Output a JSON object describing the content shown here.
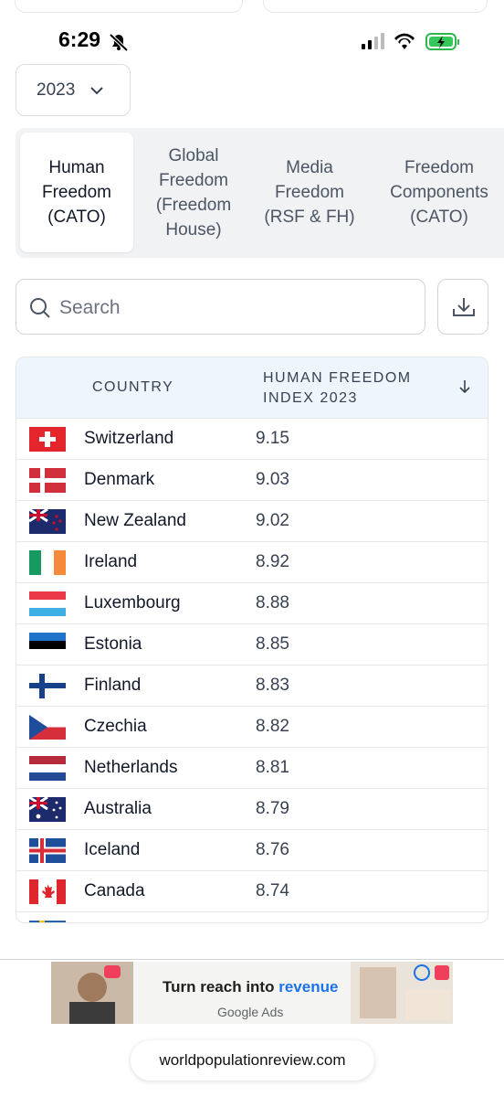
{
  "status": {
    "time": "6:29"
  },
  "year_select": "2023",
  "tabs": [
    "Human Freedom (CATO)",
    "Global Freedom (Freedom House)",
    "Media Freedom (RSF & FH)",
    "Freedom Components (CATO)"
  ],
  "search": {
    "placeholder": "Search"
  },
  "table": {
    "headers": [
      "COUNTRY",
      "HUMAN FREEDOM INDEX 2023"
    ],
    "rows": [
      [
        "Switzerland",
        9.15
      ],
      [
        "Denmark",
        9.03
      ],
      [
        "New Zealand",
        9.02
      ],
      [
        "Ireland",
        8.92
      ],
      [
        "Luxembourg",
        8.88
      ],
      [
        "Estonia",
        8.85
      ],
      [
        "Finland",
        8.83
      ],
      [
        "Czechia",
        8.82
      ],
      [
        "Netherlands",
        8.81
      ],
      [
        "Australia",
        8.79
      ],
      [
        "Iceland",
        8.76
      ],
      [
        "Canada",
        8.74
      ]
    ]
  },
  "ad": {
    "headline": "Turn reach into",
    "highlight": "revenue",
    "brand": "Google Ads"
  },
  "url": "worldpopulationreview.com"
}
